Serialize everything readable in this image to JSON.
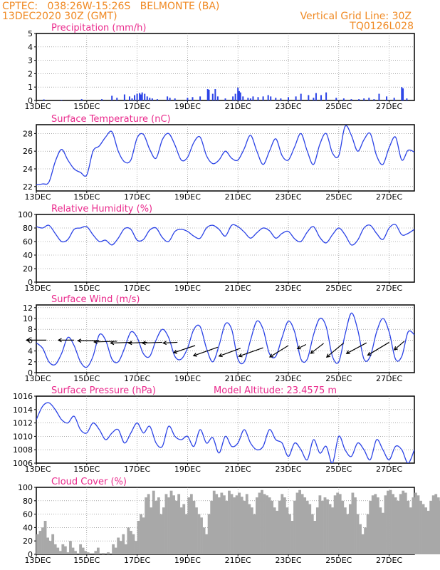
{
  "header": {
    "line1_left": "CPTEC:   038:26W-15:26S   BELMONTE (BA)",
    "line2_left": "13DEC2020 30Z (GMT)",
    "line1_right": "Vertical Grid Line: 30Z",
    "line2_right": "TQ0126L028"
  },
  "colors": {
    "series": "#2b43e6",
    "header": "#f08a24",
    "title": "#ea2a8c",
    "cloud": "#a8a8a8",
    "wind_arrow": "#000000"
  },
  "x_axis": {
    "ticks": [
      "13DEC",
      "15DEC",
      "17DEC",
      "19DEC",
      "21DEC",
      "23DEC",
      "25DEC",
      "27DEC"
    ],
    "tick_days": [
      0,
      2,
      4,
      6,
      8,
      10,
      12,
      14
    ],
    "range_days": [
      0,
      15
    ],
    "start_label": "13DEC2020"
  },
  "chart_data": [
    {
      "id": "precip",
      "type": "bar",
      "title": "Precipitation (mm/h)",
      "ylim": [
        0,
        5
      ],
      "yticks": [
        0,
        1,
        2,
        3,
        4,
        5
      ],
      "x": [
        0.3,
        1.0,
        1.8,
        2.6,
        3.0,
        3.2,
        3.5,
        3.7,
        3.8,
        3.9,
        4.0,
        4.1,
        4.15,
        4.2,
        4.3,
        4.4,
        4.5,
        4.6,
        4.8,
        5.2,
        5.3,
        5.5,
        6.0,
        6.2,
        6.5,
        6.8,
        6.85,
        7.0,
        7.1,
        7.2,
        7.5,
        7.8,
        7.9,
        8.0,
        8.05,
        8.1,
        8.2,
        8.4,
        8.5,
        8.6,
        8.8,
        9.0,
        9.2,
        9.3,
        9.5,
        9.7,
        10.0,
        10.3,
        10.5,
        10.8,
        11.0,
        11.1,
        11.3,
        11.5,
        11.9,
        12.2,
        12.5,
        12.8,
        13.0,
        13.2,
        13.4,
        13.6,
        13.9,
        14.2,
        14.5,
        14.55,
        14.7
      ],
      "values": [
        0.08,
        0.05,
        0.1,
        0.1,
        0.35,
        0.2,
        0.45,
        0.3,
        0.15,
        0.4,
        0.5,
        0.55,
        0.45,
        0.6,
        0.5,
        0.3,
        0.2,
        0.15,
        0.1,
        0.3,
        0.2,
        0.15,
        0.2,
        0.25,
        0.3,
        0.85,
        0.8,
        0.5,
        0.85,
        0.3,
        0.15,
        0.3,
        0.5,
        0.95,
        0.7,
        0.6,
        0.3,
        0.2,
        0.15,
        0.3,
        0.25,
        0.3,
        0.4,
        0.3,
        0.2,
        0.15,
        0.25,
        0.3,
        0.5,
        0.4,
        0.2,
        0.55,
        0.4,
        0.6,
        0.2,
        0.15,
        0.1,
        0.1,
        0.15,
        0.2,
        0.1,
        0.5,
        0.3,
        0.2,
        1.0,
        0.9,
        0.15
      ]
    },
    {
      "id": "temp",
      "type": "line",
      "title": "Surface Temperature (nC)",
      "ylim": [
        21.5,
        29
      ],
      "yticks": [
        22,
        24,
        26,
        28
      ],
      "x": [
        0,
        0.25,
        0.5,
        0.75,
        1,
        1.25,
        1.5,
        1.75,
        2,
        2.25,
        2.5,
        2.75,
        3,
        3.25,
        3.5,
        3.75,
        4,
        4.25,
        4.5,
        4.75,
        5,
        5.25,
        5.5,
        5.75,
        6,
        6.25,
        6.5,
        6.75,
        7,
        7.25,
        7.5,
        7.75,
        8,
        8.25,
        8.5,
        8.75,
        9,
        9.25,
        9.5,
        9.75,
        10,
        10.25,
        10.5,
        10.75,
        11,
        11.25,
        11.5,
        11.75,
        12,
        12.25,
        12.5,
        12.75,
        13,
        13.25,
        13.5,
        13.75,
        14,
        14.25,
        14.5,
        14.75,
        15
      ],
      "y": [
        22.2,
        22.3,
        22.5,
        24.8,
        26.2,
        25.0,
        24.0,
        23.6,
        23.3,
        26.0,
        26.6,
        27.6,
        28.2,
        26.0,
        24.8,
        25.0,
        27.5,
        27.9,
        26.2,
        25.2,
        27.3,
        28.0,
        26.7,
        25.0,
        25.3,
        27.0,
        27.6,
        25.5,
        24.6,
        25.0,
        26.0,
        25.2,
        25.0,
        26.3,
        27.8,
        26.0,
        24.5,
        26.0,
        27.4,
        25.5,
        25.0,
        26.5,
        28.0,
        26.0,
        24.5,
        26.8,
        28.0,
        25.8,
        25.5,
        28.8,
        27.8,
        26.0,
        27.3,
        28.0,
        25.5,
        24.5,
        26.4,
        27.6,
        25.0,
        26.1,
        25.9
      ]
    },
    {
      "id": "rh",
      "type": "line",
      "title": "Relative Humidity (%)",
      "ylim": [
        0,
        100
      ],
      "yticks": [
        0,
        20,
        40,
        60,
        80,
        100
      ],
      "x": [
        0,
        0.25,
        0.5,
        0.75,
        1,
        1.25,
        1.5,
        1.75,
        2,
        2.25,
        2.5,
        2.75,
        3,
        3.25,
        3.5,
        3.75,
        4,
        4.25,
        4.5,
        4.75,
        5,
        5.25,
        5.5,
        5.75,
        6,
        6.25,
        6.5,
        6.75,
        7,
        7.25,
        7.5,
        7.75,
        8,
        8.25,
        8.5,
        8.75,
        9,
        9.25,
        9.5,
        9.75,
        10,
        10.25,
        10.5,
        10.75,
        11,
        11.25,
        11.5,
        11.75,
        12,
        12.25,
        12.5,
        12.75,
        13,
        13.25,
        13.5,
        13.75,
        14,
        14.25,
        14.5,
        14.75,
        15
      ],
      "y": [
        82,
        80,
        84,
        72,
        60,
        63,
        78,
        80,
        82,
        70,
        60,
        62,
        55,
        65,
        79,
        78,
        62,
        63,
        77,
        80,
        66,
        60,
        75,
        78,
        75,
        68,
        65,
        80,
        84,
        78,
        68,
        84,
        82,
        74,
        65,
        73,
        80,
        76,
        65,
        72,
        75,
        64,
        60,
        74,
        82,
        66,
        58,
        70,
        80,
        70,
        55,
        62,
        80,
        84,
        72,
        63,
        80,
        85,
        70,
        72,
        78
      ]
    },
    {
      "id": "wind",
      "type": "line",
      "title": "Surface Wind (m/s)",
      "ylim": [
        0,
        12.5
      ],
      "yticks": [
        0,
        2,
        4,
        6,
        8,
        10,
        12
      ],
      "x": [
        0,
        0.25,
        0.5,
        0.75,
        1,
        1.25,
        1.5,
        1.75,
        2,
        2.25,
        2.5,
        2.75,
        3,
        3.25,
        3.5,
        3.75,
        4,
        4.25,
        4.5,
        4.75,
        5,
        5.25,
        5.5,
        5.75,
        6,
        6.25,
        6.5,
        6.75,
        7,
        7.25,
        7.5,
        7.75,
        8,
        8.25,
        8.5,
        8.75,
        9,
        9.25,
        9.5,
        9.75,
        10,
        10.25,
        10.5,
        10.75,
        11,
        11.25,
        11.5,
        11.75,
        12,
        12.25,
        12.5,
        12.75,
        13,
        13.25,
        13.5,
        13.75,
        14,
        14.25,
        14.5,
        14.75,
        15
      ],
      "y": [
        5.5,
        4.5,
        2.0,
        1.5,
        3.5,
        6.5,
        5.0,
        2.0,
        1.0,
        3.0,
        7.0,
        6.0,
        2.5,
        2.0,
        4.5,
        7.5,
        6.5,
        3.5,
        3.0,
        6.0,
        8.0,
        6.5,
        3.0,
        2.5,
        4.5,
        8.0,
        8.5,
        4.5,
        2.0,
        5.0,
        9.0,
        8.0,
        2.5,
        2.0,
        6.0,
        9.5,
        8.0,
        3.5,
        3.0,
        6.5,
        9.5,
        7.5,
        2.5,
        2.5,
        7.0,
        10.0,
        8.5,
        3.0,
        2.0,
        7.0,
        11.0,
        8.0,
        2.5,
        3.0,
        7.5,
        10.0,
        7.5,
        2.5,
        3.0,
        7.5,
        7.0
      ],
      "arrows": [
        {
          "x": 0.4,
          "y": 6.0,
          "dx": -28,
          "dy": 0
        },
        {
          "x": 1.5,
          "y": 6.0,
          "dx": -22,
          "dy": 0
        },
        {
          "x": 2.5,
          "y": 5.9,
          "dx": -30,
          "dy": 0
        },
        {
          "x": 3.2,
          "y": 5.8,
          "dx": -32,
          "dy": 1
        },
        {
          "x": 3.8,
          "y": 5.6,
          "dx": -30,
          "dy": 1
        },
        {
          "x": 4.4,
          "y": 5.6,
          "dx": -26,
          "dy": 1
        },
        {
          "x": 5.0,
          "y": 5.6,
          "dx": -28,
          "dy": 1
        },
        {
          "x": 5.6,
          "y": 5.6,
          "dx": -20,
          "dy": 1
        },
        {
          "x": 6.3,
          "y": 5.0,
          "dx": -30,
          "dy": 10
        },
        {
          "x": 7.2,
          "y": 4.7,
          "dx": -34,
          "dy": 12
        },
        {
          "x": 8.1,
          "y": 4.5,
          "dx": -30,
          "dy": 11
        },
        {
          "x": 9.0,
          "y": 4.6,
          "dx": -34,
          "dy": 12
        },
        {
          "x": 10.0,
          "y": 5.0,
          "dx": -26,
          "dy": 16
        },
        {
          "x": 10.7,
          "y": 5.2,
          "dx": -12,
          "dy": 6
        },
        {
          "x": 11.4,
          "y": 5.4,
          "dx": -18,
          "dy": 14
        },
        {
          "x": 12.2,
          "y": 5.5,
          "dx": -24,
          "dy": 20
        },
        {
          "x": 13.1,
          "y": 5.5,
          "dx": -28,
          "dy": 15
        },
        {
          "x": 14.0,
          "y": 5.6,
          "dx": -30,
          "dy": 18
        },
        {
          "x": 14.6,
          "y": 5.8,
          "dx": -14,
          "dy": 12
        }
      ]
    },
    {
      "id": "pres",
      "type": "line",
      "title": "Surface Pressure (hPa)",
      "annotation": "Model Altitude: 23.4575 m",
      "ylim": [
        1006,
        1016
      ],
      "yticks": [
        1006,
        1008,
        1010,
        1012,
        1014,
        1016
      ],
      "x": [
        0,
        0.25,
        0.5,
        0.75,
        1,
        1.25,
        1.5,
        1.75,
        2,
        2.25,
        2.5,
        2.75,
        3,
        3.25,
        3.5,
        3.75,
        4,
        4.25,
        4.5,
        4.75,
        5,
        5.25,
        5.5,
        5.75,
        6,
        6.25,
        6.5,
        6.75,
        7,
        7.25,
        7.5,
        7.75,
        8,
        8.25,
        8.5,
        8.75,
        9,
        9.25,
        9.5,
        9.75,
        10,
        10.25,
        10.5,
        10.75,
        11,
        11.25,
        11.5,
        11.75,
        12,
        12.25,
        12.5,
        12.75,
        13,
        13.25,
        13.5,
        13.75,
        14,
        14.25,
        14.5,
        14.75,
        15
      ],
      "y": [
        1012.5,
        1014.5,
        1015.0,
        1014.0,
        1012.5,
        1012.0,
        1013.0,
        1011.0,
        1010.5,
        1012.0,
        1011.0,
        1009.5,
        1010.5,
        1011.0,
        1009.0,
        1010.5,
        1012.0,
        1010.5,
        1011.5,
        1009.0,
        1008.5,
        1011.5,
        1010.0,
        1009.5,
        1010.0,
        1008.5,
        1011.0,
        1009.0,
        1009.8,
        1007.5,
        1010.0,
        1008.5,
        1009.0,
        1011.0,
        1009.0,
        1008.0,
        1008.5,
        1011.0,
        1009.5,
        1009.0,
        1007.0,
        1009.0,
        1008.0,
        1006.5,
        1009.5,
        1007.5,
        1008.5,
        1006.0,
        1010.0,
        1008.0,
        1007.0,
        1009.0,
        1008.0,
        1006.5,
        1009.5,
        1008.0,
        1006.5,
        1008.5,
        1008.0,
        1006.0,
        1008.0
      ]
    },
    {
      "id": "cloud",
      "type": "bar",
      "title": "Cloud Cover (%)",
      "ylim": [
        0,
        100
      ],
      "yticks": [
        0,
        20,
        40,
        60,
        80,
        100
      ],
      "x_step": 0.1,
      "values": [
        30,
        35,
        40,
        50,
        25,
        20,
        30,
        15,
        10,
        5,
        15,
        12,
        3,
        20,
        10,
        5,
        0,
        15,
        10,
        5,
        3,
        0,
        0,
        5,
        10,
        0,
        2,
        0,
        3,
        0,
        15,
        10,
        25,
        20,
        30,
        15,
        40,
        35,
        30,
        20,
        50,
        60,
        55,
        85,
        90,
        70,
        95,
        80,
        85,
        60,
        70,
        90,
        85,
        95,
        88,
        80,
        90,
        70,
        75,
        60,
        85,
        90,
        80,
        70,
        60,
        55,
        40,
        30,
        60,
        80,
        95,
        90,
        85,
        92,
        88,
        80,
        95,
        90,
        85,
        88,
        92,
        86,
        80,
        90,
        75,
        70,
        60,
        85,
        92,
        96,
        90,
        88,
        85,
        80,
        70,
        65,
        80,
        90,
        85,
        70,
        60,
        50,
        80,
        92,
        96,
        90,
        85,
        80,
        75,
        60,
        50,
        70,
        88,
        80,
        85,
        82,
        75,
        70,
        88,
        92,
        90,
        80,
        70,
        60,
        75,
        92,
        85,
        60,
        45,
        30,
        40,
        60,
        80,
        88,
        90,
        85,
        70,
        62,
        88,
        95,
        96,
        90,
        85,
        80,
        90,
        95,
        92,
        80,
        70,
        85,
        92,
        88,
        80,
        75,
        70,
        65,
        80,
        88,
        90,
        85,
        80,
        85,
        90,
        92,
        88,
        86,
        90,
        88,
        85,
        80,
        85,
        90,
        92,
        90,
        88,
        85,
        90,
        92,
        95,
        88,
        85,
        70,
        60,
        80,
        90,
        88,
        90,
        92,
        90,
        88,
        90,
        90
      ]
    }
  ]
}
